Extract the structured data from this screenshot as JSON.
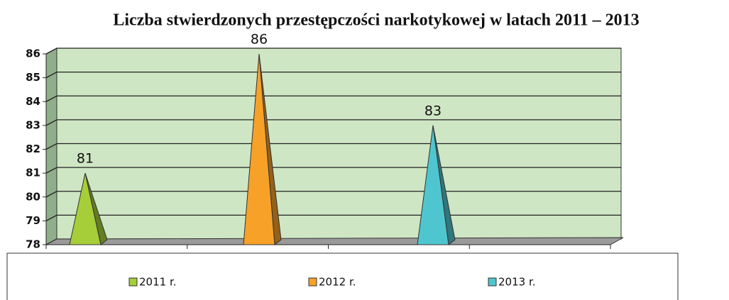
{
  "chart_data": {
    "type": "pyramid",
    "title": "Liczba stwierdzonych przestępczości narkotykowej w latach 2011 – 2013",
    "series": [
      {
        "name": "2011 r.",
        "color": "#a6ce39",
        "values": [
          81
        ]
      },
      {
        "name": "2012 r.",
        "color": "#f7a128",
        "values": [
          86
        ]
      },
      {
        "name": "2013 r.",
        "color": "#4fc6cf",
        "values": [
          83
        ]
      }
    ],
    "ylim": [
      78,
      86
    ],
    "yticks": [
      78,
      79,
      80,
      81,
      82,
      83,
      84,
      85,
      86
    ],
    "grid": true,
    "legend": "bottom"
  }
}
